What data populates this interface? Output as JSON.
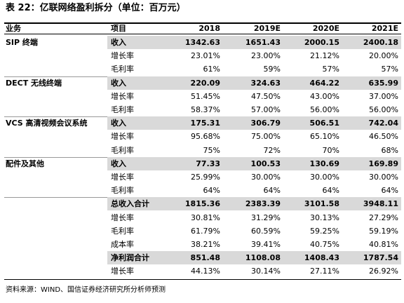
{
  "header": {
    "title": "表 22：亿联网络盈利拆分（单位：百万元）"
  },
  "table": {
    "columns": [
      "业务",
      "项目",
      "2018",
      "2019E",
      "2020E",
      "2021E"
    ],
    "groups": [
      {
        "segment": "SIP 终端",
        "rows": [
          {
            "item": "收入",
            "values": [
              "1342.63",
              "1651.43",
              "2000.15",
              "2400.18"
            ]
          },
          {
            "item": "增长率",
            "values": [
              "23.01%",
              "23.00%",
              "21.12%",
              "20.00%"
            ]
          },
          {
            "item": "毛利率",
            "values": [
              "61%",
              "59%",
              "57%",
              "57%"
            ]
          }
        ]
      },
      {
        "segment": "DECT 无线终端",
        "rows": [
          {
            "item": "收入",
            "values": [
              "220.09",
              "324.63",
              "464.22",
              "635.99"
            ]
          },
          {
            "item": "增长率",
            "values": [
              "51.45%",
              "47.50%",
              "43.00%",
              "37.00%"
            ]
          },
          {
            "item": "毛利率",
            "values": [
              "58.37%",
              "57.00%",
              "56.00%",
              "56.00%"
            ]
          }
        ]
      },
      {
        "segment": "VCS 高清视频会议系统",
        "rows": [
          {
            "item": "收入",
            "values": [
              "175.31",
              "306.79",
              "506.51",
              "742.04"
            ]
          },
          {
            "item": "增长率",
            "values": [
              "95.68%",
              "75.00%",
              "65.10%",
              "46.50%"
            ]
          },
          {
            "item": "毛利率",
            "values": [
              "75%",
              "72%",
              "70%",
              "68%"
            ]
          }
        ]
      },
      {
        "segment": "配件及其他",
        "rows": [
          {
            "item": "收入",
            "values": [
              "77.33",
              "100.53",
              "130.69",
              "169.89"
            ]
          },
          {
            "item": "增长率",
            "values": [
              "25.99%",
              "30.00%",
              "30.00%",
              "30.00%"
            ]
          },
          {
            "item": "毛利率",
            "values": [
              "64%",
              "64%",
              "64%",
              "64%"
            ]
          }
        ]
      },
      {
        "rows": [
          {
            "item": "总收入合计",
            "values": [
              "1815.36",
              "2383.39",
              "3101.58",
              "3948.11"
            ]
          },
          {
            "item": "增长率",
            "values": [
              "30.81%",
              "31.29%",
              "30.13%",
              "27.29%"
            ]
          },
          {
            "item": "毛利率",
            "values": [
              "61.79%",
              "60.59%",
              "59.25%",
              "59.19%"
            ]
          },
          {
            "item": "成本率",
            "values": [
              "38.21%",
              "39.41%",
              "40.75%",
              "40.81%"
            ]
          },
          {
            "item": "净利润合计",
            "values": [
              "851.48",
              "1108.08",
              "1408.43",
              "1787.54"
            ]
          },
          {
            "item": "增长率",
            "values": [
              "44.13%",
              "30.14%",
              "27.11%",
              "26.92%"
            ]
          }
        ]
      }
    ]
  },
  "footer": {
    "source": "资料来源：WIND、国信证券经济研究所分析师预测"
  }
}
